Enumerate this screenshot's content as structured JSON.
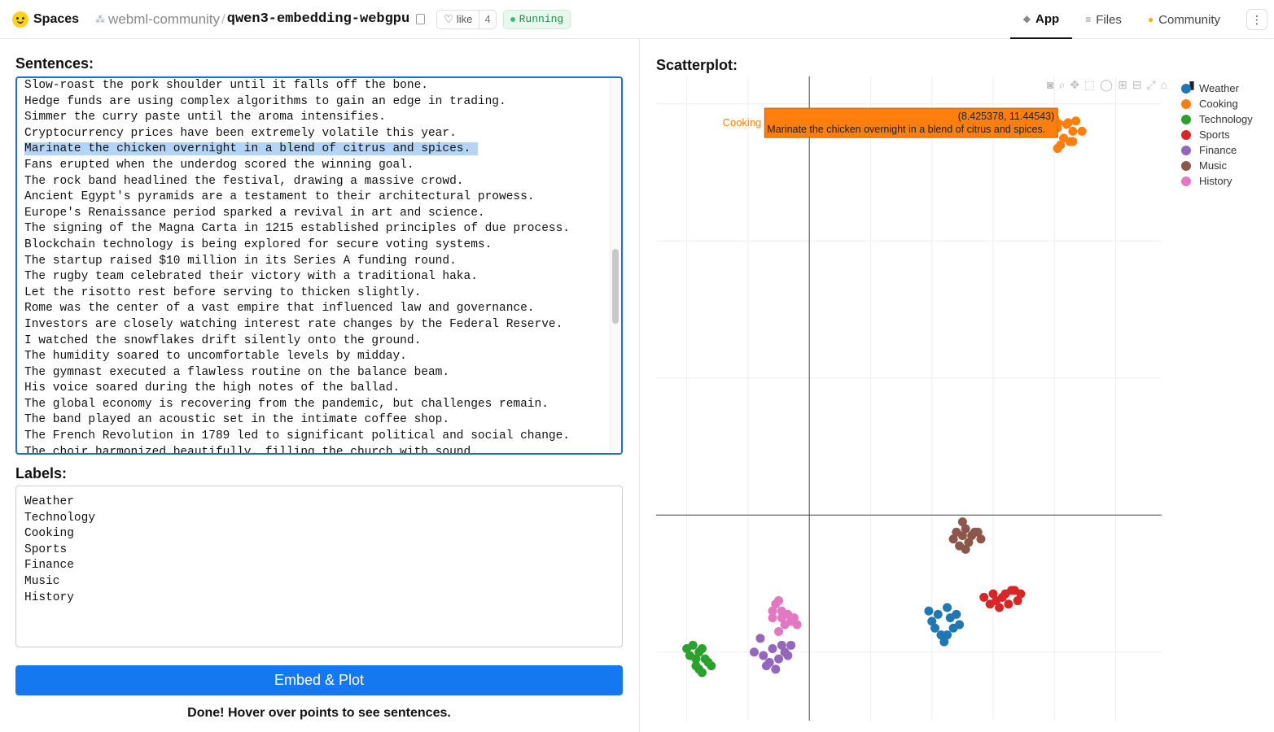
{
  "header": {
    "brand": "Spaces",
    "org": "webml-community",
    "separator": "/",
    "repo": "qwen3-embedding-webgpu",
    "like_label": "like",
    "like_count": "4",
    "status": "Running",
    "tabs": [
      {
        "label": "App",
        "icon": "app-icon"
      },
      {
        "label": "Files",
        "icon": "files-icon"
      },
      {
        "label": "Community",
        "icon": "community-icon"
      }
    ],
    "menu_icon": "⋮"
  },
  "sentences": {
    "title": "Sentences:",
    "selected_index": 4,
    "lines": [
      "Slow-roast the pork shoulder until it falls off the bone.",
      "Hedge funds are using complex algorithms to gain an edge in trading.",
      "Simmer the curry paste until the aroma intensifies.",
      "Cryptocurrency prices have been extremely volatile this year.",
      "Marinate the chicken overnight in a blend of citrus and spices. ",
      "Fans erupted when the underdog scored the winning goal.",
      "The rock band headlined the festival, drawing a massive crowd.",
      "Ancient Egypt's pyramids are a testament to their architectural prowess.",
      "Europe's Renaissance period sparked a revival in art and science.",
      "The signing of the Magna Carta in 1215 established principles of due process.",
      "Blockchain technology is being explored for secure voting systems.",
      "The startup raised $10 million in its Series A funding round.",
      "The rugby team celebrated their victory with a traditional haka.",
      "Let the risotto rest before serving to thicken slightly.",
      "Rome was the center of a vast empire that influenced law and governance.",
      "Investors are closely watching interest rate changes by the Federal Reserve.",
      "I watched the snowflakes drift silently onto the ground.",
      "The humidity soared to uncomfortable levels by midday.",
      "The gymnast executed a flawless routine on the balance beam.",
      "His voice soared during the high notes of the ballad.",
      "The global economy is recovering from the pandemic, but challenges remain.",
      "The band played an acoustic set in the intimate coffee shop.",
      "The French Revolution in 1789 led to significant political and social change.",
      "The choir harmonized beautifully, filling the church with sound."
    ]
  },
  "labels": {
    "title": "Labels:",
    "value": "Weather\nTechnology\nCooking\nSports\nFinance\nMusic\nHistory"
  },
  "button": {
    "label": "Embed & Plot"
  },
  "status_text": "Done! Hover over points to see sentences.",
  "plot": {
    "title": "Scatterplot:",
    "tooltip": {
      "label": "Cooking",
      "coords": "(8.425378, 11.44543)",
      "text": "Marinate the chicken overnight in a blend of citrus and spices.",
      "color": "#ff7f0e"
    },
    "toolbar_icons": [
      "camera-icon",
      "zoom-icon",
      "pan-icon",
      "box-select-icon",
      "lasso-icon",
      "zoom-in-icon",
      "zoom-out-icon",
      "autoscale-icon",
      "reset-icon",
      "plotly-logo-icon"
    ]
  },
  "chart_data": {
    "type": "scatter",
    "title": "",
    "xlabel": "",
    "ylabel": "",
    "grid": true,
    "legend_position": "top-right",
    "series": [
      {
        "name": "Weather",
        "color": "#1f77b4",
        "points": [
          [
            4.2,
            -2.9
          ],
          [
            4.5,
            -2.7
          ],
          [
            4.0,
            -3.1
          ],
          [
            4.7,
            -3.3
          ],
          [
            4.3,
            -3.5
          ],
          [
            4.6,
            -3.0
          ],
          [
            3.9,
            -2.8
          ],
          [
            4.8,
            -2.9
          ],
          [
            4.4,
            -3.7
          ],
          [
            4.1,
            -3.3
          ],
          [
            4.9,
            -3.2
          ],
          [
            4.5,
            -3.5
          ]
        ]
      },
      {
        "name": "Cooking",
        "color": "#ff7f0e",
        "points": [
          [
            8.4,
            11.4
          ],
          [
            8.1,
            11.3
          ],
          [
            8.6,
            11.2
          ],
          [
            8.3,
            11.0
          ],
          [
            8.0,
            11.6
          ],
          [
            8.7,
            11.5
          ],
          [
            8.5,
            10.9
          ],
          [
            8.2,
            10.8
          ],
          [
            8.9,
            11.2
          ],
          [
            8.45,
            11.45
          ],
          [
            8.1,
            10.7
          ],
          [
            8.6,
            10.9
          ]
        ]
      },
      {
        "name": "Technology",
        "color": "#2ca02c",
        "points": [
          [
            -3.9,
            -4.1
          ],
          [
            -3.6,
            -4.0
          ],
          [
            -3.7,
            -4.4
          ],
          [
            -3.4,
            -4.2
          ],
          [
            -3.5,
            -3.9
          ],
          [
            -4.0,
            -3.9
          ],
          [
            -3.6,
            -4.5
          ],
          [
            -3.3,
            -4.3
          ],
          [
            -3.8,
            -3.8
          ],
          [
            -3.5,
            -4.6
          ],
          [
            -3.2,
            -4.4
          ],
          [
            -3.7,
            -4.2
          ]
        ]
      },
      {
        "name": "Sports",
        "color": "#d62728",
        "points": [
          [
            5.7,
            -2.4
          ],
          [
            6.0,
            -2.3
          ],
          [
            6.3,
            -2.4
          ],
          [
            6.6,
            -2.2
          ],
          [
            6.8,
            -2.5
          ],
          [
            6.5,
            -2.6
          ],
          [
            6.2,
            -2.7
          ],
          [
            5.9,
            -2.6
          ],
          [
            6.9,
            -2.3
          ],
          [
            6.7,
            -2.2
          ],
          [
            6.1,
            -2.5
          ],
          [
            6.4,
            -2.3
          ]
        ]
      },
      {
        "name": "Finance",
        "color": "#9467bd",
        "points": [
          [
            -1.8,
            -4.0
          ],
          [
            -1.5,
            -4.1
          ],
          [
            -1.2,
            -3.9
          ],
          [
            -0.9,
            -3.8
          ],
          [
            -1.0,
            -4.2
          ],
          [
            -1.4,
            -4.4
          ],
          [
            -0.8,
            -4.0
          ],
          [
            -1.1,
            -4.5
          ],
          [
            -0.6,
            -3.8
          ],
          [
            -1.6,
            -3.6
          ],
          [
            -0.7,
            -4.1
          ],
          [
            -1.3,
            -4.3
          ]
        ]
      },
      {
        "name": "Music",
        "color": "#8c564b",
        "points": [
          [
            4.8,
            -0.5
          ],
          [
            5.1,
            -0.4
          ],
          [
            5.4,
            -0.5
          ],
          [
            5.6,
            -0.7
          ],
          [
            5.2,
            -0.8
          ],
          [
            4.9,
            -0.9
          ],
          [
            5.0,
            -0.2
          ],
          [
            5.3,
            -0.6
          ],
          [
            4.7,
            -0.7
          ],
          [
            5.5,
            -0.5
          ],
          [
            5.1,
            -1.0
          ],
          [
            5.0,
            -0.6
          ]
        ]
      },
      {
        "name": "History",
        "color": "#e377c2",
        "points": [
          [
            -1.1,
            -2.6
          ],
          [
            -0.9,
            -2.8
          ],
          [
            -1.2,
            -3.0
          ],
          [
            -0.8,
            -3.2
          ],
          [
            -1.0,
            -3.4
          ],
          [
            -0.6,
            -3.1
          ],
          [
            -0.4,
            -3.2
          ],
          [
            -1.2,
            -2.8
          ],
          [
            -0.7,
            -2.9
          ],
          [
            -0.9,
            -3.0
          ],
          [
            -1.0,
            -2.5
          ],
          [
            -0.5,
            -3.0
          ]
        ]
      }
    ],
    "xlim": [
      -5,
      11.5
    ],
    "ylim": [
      -6,
      12.8
    ]
  }
}
